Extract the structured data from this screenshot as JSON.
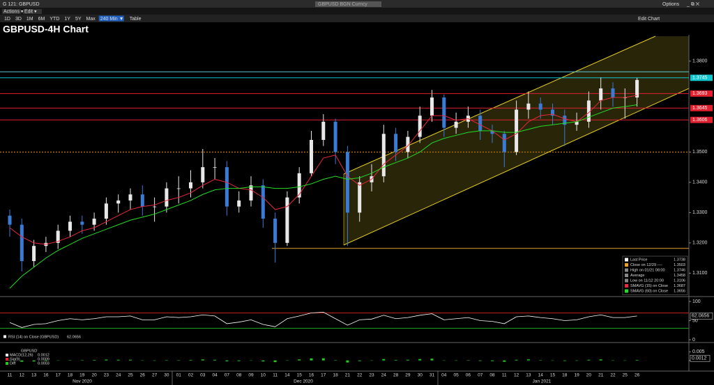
{
  "window": {
    "title": "G 121: GBPUSD",
    "security": "GBPUSD BGN Curncy",
    "options": "Options"
  },
  "menu": [
    "Actions ▾",
    "Edit ▾"
  ],
  "toolbar": {
    "ranges": [
      "1D",
      "3D",
      "1M",
      "6M",
      "YTD",
      "1Y",
      "5Y",
      "Max"
    ],
    "interval": "240 Min ▼",
    "table": "Table",
    "edit_chart": "Edit Chart"
  },
  "chart_data": {
    "type": "candlestick",
    "title": "GBPUSD-4H Chart",
    "categories": [
      "11",
      "12",
      "13",
      "16",
      "17",
      "18",
      "19",
      "20",
      "23",
      "24",
      "25",
      "26",
      "27",
      "30",
      "01",
      "02",
      "03",
      "04",
      "07",
      "08",
      "09",
      "10",
      "11",
      "14",
      "15",
      "16",
      "17",
      "18",
      "21",
      "22",
      "23",
      "24",
      "28",
      "29",
      "30",
      "31",
      "04",
      "05",
      "06",
      "07",
      "08",
      "11",
      "12",
      "13",
      "14",
      "15",
      "18",
      "19",
      "20",
      "21",
      "22",
      "25",
      "26"
    ],
    "months": [
      "Nov 2020",
      "Dec 2020",
      "Jan 2021"
    ],
    "open": [
      1.329,
      1.326,
      1.314,
      1.319,
      1.32,
      1.324,
      1.327,
      1.326,
      1.328,
      1.333,
      1.334,
      1.336,
      1.332,
      1.332,
      1.338,
      1.338,
      1.34,
      1.345,
      1.345,
      1.332,
      1.334,
      1.339,
      1.328,
      1.32,
      1.335,
      1.343,
      1.354,
      1.36,
      1.35,
      1.33,
      1.34,
      1.342,
      1.356,
      1.35,
      1.355,
      1.362,
      1.368,
      1.358,
      1.36,
      1.362,
      1.357,
      1.356,
      1.35,
      1.364,
      1.366,
      1.364,
      1.362,
      1.359,
      1.36,
      1.367,
      1.371,
      1.368,
      1.368
    ],
    "high": [
      1.331,
      1.328,
      1.321,
      1.322,
      1.326,
      1.329,
      1.329,
      1.33,
      1.335,
      1.336,
      1.338,
      1.339,
      1.335,
      1.34,
      1.342,
      1.344,
      1.351,
      1.348,
      1.347,
      1.337,
      1.342,
      1.341,
      1.33,
      1.337,
      1.345,
      1.357,
      1.3625,
      1.361,
      1.352,
      1.342,
      1.346,
      1.359,
      1.358,
      1.357,
      1.365,
      1.3705,
      1.369,
      1.363,
      1.365,
      1.364,
      1.359,
      1.357,
      1.367,
      1.37,
      1.368,
      1.366,
      1.364,
      1.363,
      1.37,
      1.3746,
      1.373,
      1.371,
      1.3745
    ],
    "low": [
      1.322,
      1.3106,
      1.312,
      1.317,
      1.318,
      1.322,
      1.323,
      1.324,
      1.326,
      1.33,
      1.331,
      1.329,
      1.327,
      1.33,
      1.333,
      1.335,
      1.338,
      1.341,
      1.329,
      1.33,
      1.332,
      1.325,
      1.3135,
      1.319,
      1.333,
      1.342,
      1.352,
      1.346,
      1.319,
      1.327,
      1.337,
      1.34,
      1.347,
      1.348,
      1.353,
      1.36,
      1.355,
      1.356,
      1.358,
      1.354,
      1.353,
      1.345,
      1.349,
      1.361,
      1.361,
      1.359,
      1.352,
      1.357,
      1.358,
      1.364,
      1.365,
      1.361,
      1.365
    ],
    "close": [
      1.326,
      1.314,
      1.319,
      1.32,
      1.324,
      1.327,
      1.326,
      1.328,
      1.333,
      1.334,
      1.336,
      1.332,
      1.332,
      1.338,
      1.338,
      1.34,
      1.345,
      1.345,
      1.332,
      1.334,
      1.339,
      1.328,
      1.32,
      1.335,
      1.343,
      1.354,
      1.36,
      1.35,
      1.33,
      1.34,
      1.342,
      1.356,
      1.35,
      1.355,
      1.362,
      1.368,
      1.358,
      1.36,
      1.362,
      1.357,
      1.356,
      1.35,
      1.364,
      1.366,
      1.364,
      1.362,
      1.359,
      1.36,
      1.367,
      1.371,
      1.368,
      1.368,
      1.3738
    ],
    "up_color": "#e8e8e8",
    "down_color": "#3a7bd5",
    "series": [
      {
        "name": "SMAVG (15) on Close",
        "color": "#e8283c",
        "values": [
          1.325,
          1.322,
          1.32,
          1.3195,
          1.3205,
          1.322,
          1.324,
          1.325,
          1.327,
          1.329,
          1.331,
          1.332,
          1.3325,
          1.334,
          1.335,
          1.3365,
          1.339,
          1.341,
          1.34,
          1.338,
          1.3375,
          1.335,
          1.331,
          1.332,
          1.336,
          1.342,
          1.348,
          1.349,
          1.342,
          1.339,
          1.341,
          1.346,
          1.349,
          1.352,
          1.357,
          1.362,
          1.362,
          1.3605,
          1.361,
          1.359,
          1.357,
          1.354,
          1.356,
          1.36,
          1.362,
          1.3625,
          1.361,
          1.36,
          1.363,
          1.367,
          1.368,
          1.368,
          1.3687
        ]
      },
      {
        "name": "SMAVG (60) on Close",
        "color": "#22dd22",
        "values": [
          1.305,
          1.309,
          1.312,
          1.315,
          1.3175,
          1.3195,
          1.3215,
          1.323,
          1.3245,
          1.326,
          1.3275,
          1.3285,
          1.3295,
          1.331,
          1.3325,
          1.334,
          1.336,
          1.3375,
          1.338,
          1.338,
          1.3385,
          1.3385,
          1.338,
          1.338,
          1.3385,
          1.3395,
          1.341,
          1.342,
          1.341,
          1.3415,
          1.343,
          1.345,
          1.3465,
          1.348,
          1.35,
          1.353,
          1.3545,
          1.3555,
          1.3565,
          1.357,
          1.357,
          1.3565,
          1.3565,
          1.3575,
          1.3585,
          1.359,
          1.3595,
          1.36,
          1.3615,
          1.363,
          1.3645,
          1.365,
          1.3656
        ]
      }
    ],
    "ylim": [
      1.3025,
      1.3887
    ],
    "yticks": [
      {
        "value": 1.31,
        "label": "1.3100"
      },
      {
        "value": 1.32,
        "label": "1.3200"
      },
      {
        "value": 1.33,
        "label": "1.3300"
      },
      {
        "value": 1.34,
        "label": "1.3400"
      },
      {
        "value": 1.35,
        "label": "1.3500"
      },
      {
        "value": 1.38,
        "label": "1.3800"
      }
    ],
    "levels": [
      {
        "value": 1.3765,
        "color": "#5fc9d8",
        "dash": false
      },
      {
        "value": 1.35,
        "color": "#e08a00",
        "dash": true
      },
      {
        "value": 1.3182,
        "color": "#e0a030",
        "dash": false
      }
    ],
    "price_tags": [
      {
        "value": 1.3745,
        "color": "#12c6cf"
      },
      {
        "value": 1.3693,
        "color": "#e0202e"
      },
      {
        "value": 1.3645,
        "color": "#e0202e"
      },
      {
        "value": 1.3606,
        "color": "#e0202e"
      }
    ],
    "legend": [
      {
        "label": "Last Price",
        "value": 1.3738,
        "color": "#ffffff"
      },
      {
        "label": "Close on 12/29 ----",
        "value": 1.3503,
        "color": "#f0a020"
      },
      {
        "label": "High on 01/21 08:00",
        "value": 1.3746,
        "color": "#888888"
      },
      {
        "label": "Average",
        "value": 1.3458,
        "color": "#888888"
      },
      {
        "label": "Low on 11/12 20:00",
        "value": 1.3106,
        "color": "#888888"
      },
      {
        "label": "SMAVG (15) on Close",
        "value": 1.3687,
        "color": "#e8283c"
      },
      {
        "label": "SMAVG (60) on Close",
        "value": 1.3656,
        "color": "#22dd22"
      }
    ],
    "rsi": {
      "label": "RSI (14) on Close (GBPUSD)",
      "color": "#ffffff",
      "ylim": [
        0,
        100
      ],
      "yticks": [
        0,
        50,
        100
      ],
      "levels": [
        {
          "value": 70,
          "color": "#c02020"
        },
        {
          "value": 30,
          "color": "#20a020"
        }
      ],
      "values": [
        45,
        32,
        40,
        42,
        50,
        55,
        52,
        55,
        60,
        60,
        62,
        52,
        52,
        60,
        58,
        60,
        65,
        62,
        42,
        46,
        52,
        40,
        34,
        55,
        62,
        70,
        72,
        55,
        38,
        52,
        54,
        64,
        55,
        58,
        64,
        68,
        52,
        55,
        58,
        50,
        48,
        42,
        60,
        62,
        58,
        55,
        50,
        52,
        60,
        65,
        58,
        58,
        62.0656
      ]
    },
    "macd": {
      "title": "GBPUSD",
      "ylim": [
        -0.0054,
        0.0092
      ],
      "yticks": [
        0,
        0.005
      ],
      "color": "#22cc22",
      "legend": [
        {
          "label": "MACD(12,26)",
          "value": 0.0012,
          "color": "#ffffff"
        },
        {
          "label": "Sig(9)",
          "value": 0.0009,
          "color": "#e0202e"
        },
        {
          "label": "Diff",
          "value": 0.0003,
          "color": "#22cc22"
        }
      ],
      "values": [
        0.0002,
        -0.0008,
        -0.0006,
        -0.0003,
        0,
        0.0002,
        0.0002,
        0.0003,
        0.0005,
        0.0004,
        0.0004,
        0,
        -0.0002,
        0.0002,
        0.0002,
        0.0003,
        0.0006,
        0.0004,
        -0.0005,
        -0.0004,
        0,
        -0.0006,
        -0.001,
        0,
        0.0006,
        0.0012,
        0.0012,
        0.0002,
        -0.0012,
        -0.0004,
        0,
        0.0008,
        0.0003,
        0.0004,
        0.0008,
        0.001,
        0,
        0,
        0.0002,
        -0.0003,
        -0.0004,
        -0.0008,
        0.0004,
        0.0006,
        0.0002,
        0,
        -0.0003,
        -0.0002,
        0.0004,
        0.0006,
        0.0001,
        0,
        0.0003
      ]
    }
  }
}
